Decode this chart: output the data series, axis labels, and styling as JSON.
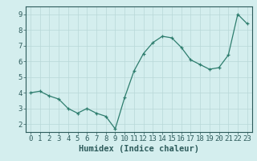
{
  "x": [
    0,
    1,
    2,
    3,
    4,
    5,
    6,
    7,
    8,
    9,
    10,
    11,
    12,
    13,
    14,
    15,
    16,
    17,
    18,
    19,
    20,
    21,
    22,
    23
  ],
  "y": [
    4.0,
    4.1,
    3.8,
    3.6,
    3.0,
    2.7,
    3.0,
    2.7,
    2.5,
    1.7,
    3.7,
    5.4,
    6.5,
    7.2,
    7.6,
    7.5,
    6.9,
    6.1,
    5.8,
    5.5,
    5.6,
    6.4,
    9.0,
    8.4
  ],
  "line_color": "#2e7d6e",
  "marker": "+",
  "marker_size": 3,
  "bg_color": "#d4eeee",
  "grid_color": "#b8d8d8",
  "xlabel": "Humidex (Indice chaleur)",
  "xlim": [
    -0.5,
    23.5
  ],
  "ylim": [
    1.5,
    9.5
  ],
  "yticks": [
    2,
    3,
    4,
    5,
    6,
    7,
    8,
    9
  ],
  "xticks": [
    0,
    1,
    2,
    3,
    4,
    5,
    6,
    7,
    8,
    9,
    10,
    11,
    12,
    13,
    14,
    15,
    16,
    17,
    18,
    19,
    20,
    21,
    22,
    23
  ],
  "xlabel_fontsize": 7.5,
  "tick_fontsize": 6.5,
  "label_color": "#2e5c5c",
  "spine_color": "#2e5c5c"
}
